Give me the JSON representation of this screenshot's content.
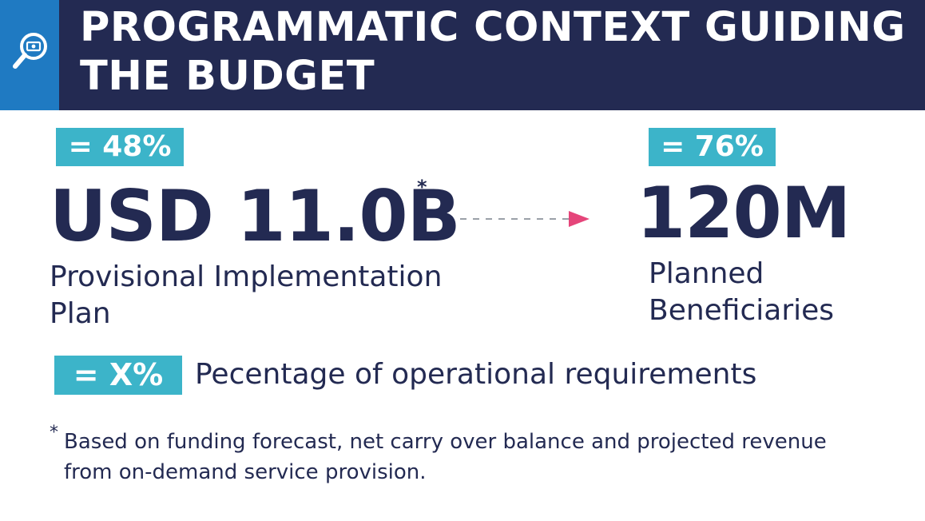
{
  "header": {
    "title": "PROGRAMMATIC CONTEXT GUIDING THE BUDGET",
    "icon": "magnifier-money-icon"
  },
  "budget": {
    "badge": "= 48%",
    "value": "USD 11.0B",
    "asterisk": "*",
    "label": "Provisional Implementation Plan"
  },
  "beneficiaries": {
    "badge": "= 76%",
    "value": "120M",
    "label": "Planned Beneficiaries"
  },
  "arrow": {
    "icon": "dashed-arrow-right-icon"
  },
  "legend": {
    "badge": "= X%",
    "text": "Pecentage of operational requirements"
  },
  "footnote": {
    "asterisk": "*",
    "text": "Based on funding forecast, net carry over balance and projected revenue from on-demand service provision."
  },
  "colors": {
    "navy": "#232a52",
    "blue": "#1f7ac2",
    "teal": "#3cb4c9",
    "pink": "#e5457a"
  }
}
